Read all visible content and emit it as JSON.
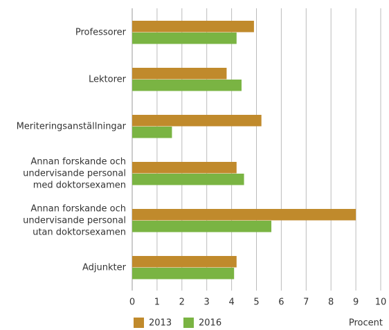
{
  "chart_data": {
    "type": "barh",
    "categories": [
      "Professorer",
      "Lektorer",
      "Meriteringsanställningar",
      "Annan forskande och undervisande personal med doktorsexamen",
      "Annan forskande och undervisande personal utan doktorsexamen",
      "Adjunkter"
    ],
    "series": [
      {
        "name": "2013",
        "color": "#c08a2c",
        "values": [
          4.9,
          3.8,
          5.2,
          4.2,
          9,
          4.2
        ]
      },
      {
        "name": "2016",
        "color": "#7ab443",
        "values": [
          4.2,
          4.4,
          1.6,
          4.5,
          5.6,
          4.1
        ]
      }
    ],
    "xlim": [
      0,
      10
    ],
    "xticks": [
      0,
      1,
      2,
      3,
      4,
      5,
      6,
      7,
      8,
      9,
      10
    ],
    "grid": true,
    "xlabel": "Procent",
    "legend": "bottom-left"
  }
}
